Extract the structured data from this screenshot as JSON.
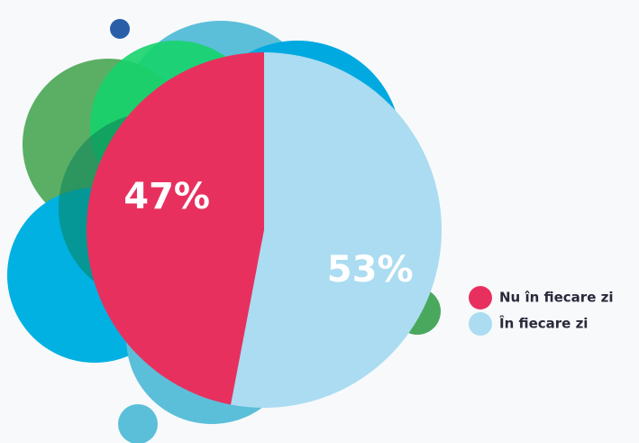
{
  "chart_data": {
    "type": "pie",
    "categories": [
      "Nu în fiecare zi",
      "În fiecare zi"
    ],
    "values": [
      47,
      53
    ],
    "value_labels": [
      "47%",
      "53%"
    ],
    "colors": [
      "#e8305f",
      "#abdcf1"
    ],
    "legend": "right"
  }
}
